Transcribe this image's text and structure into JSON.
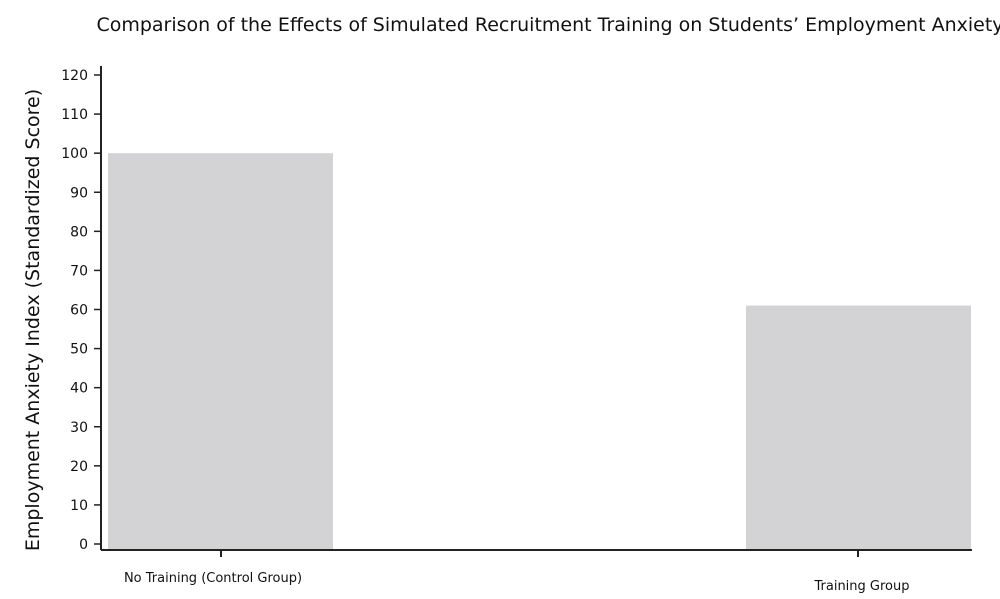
{
  "chart_data": {
    "type": "bar",
    "title": "Comparison of the Effects of Simulated Recruitment Training on Students’ Employment Anxiety",
    "xlabel": "",
    "ylabel": "Employment Anxiety Index (Standardized Score)",
    "categories": [
      "No Training (Control Group)",
      "Training Group"
    ],
    "values": [
      100,
      61
    ],
    "ylim": [
      0,
      120
    ],
    "yticks": [
      0,
      10,
      20,
      30,
      40,
      50,
      60,
      70,
      80,
      90,
      100,
      110,
      120
    ],
    "grid": false,
    "bar_color": "#d3d3d5",
    "axis_color": "#222222"
  }
}
